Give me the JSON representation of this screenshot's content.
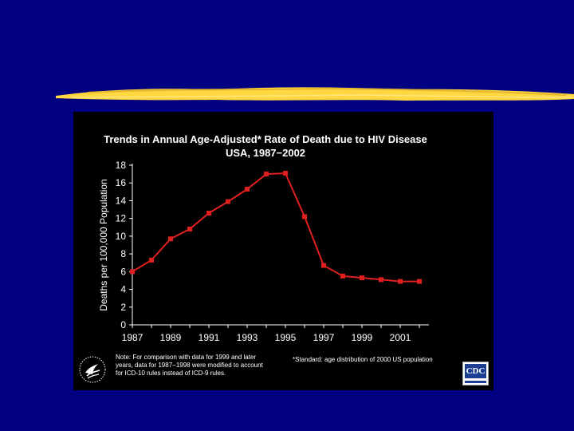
{
  "slide": {
    "background": "#000080",
    "accent_brush": "#ffd740"
  },
  "chart_data": {
    "type": "line",
    "title": "Trends in Annual Age-Adjusted* Rate of Death due to HIV Disease",
    "subtitle": "USA, 1987−2002",
    "xlabel": "",
    "ylabel": "Deaths per 100,000 Population",
    "x": [
      1987,
      1988,
      1989,
      1990,
      1991,
      1992,
      1993,
      1994,
      1995,
      1996,
      1997,
      1998,
      1999,
      2000,
      2001,
      2002
    ],
    "x_tick_labels": [
      "1987",
      "1989",
      "1991",
      "1993",
      "1995",
      "1997",
      "1999",
      "2001"
    ],
    "xlim": [
      1987,
      2002.5
    ],
    "ylim": [
      0,
      18
    ],
    "y_ticks": [
      0,
      2,
      4,
      6,
      8,
      10,
      12,
      14,
      16,
      18
    ],
    "series": [
      {
        "color": "#e02020",
        "values": [
          6.0,
          7.3,
          9.7,
          10.8,
          12.6,
          13.9,
          15.3,
          17.0,
          17.1,
          12.2,
          6.7,
          5.5,
          5.3,
          5.1,
          4.9,
          4.9
        ]
      }
    ],
    "grid": false,
    "legend": "none",
    "background": "#000000",
    "text_color": "#ffffff"
  },
  "notes": {
    "left_lines": [
      "Note: For comparison with data for 1999 and later",
      "years, data for 1987−1998 were modified to account",
      "for ICD-10 rules instead of ICD-9 rules."
    ],
    "right": "*Standard: age distribution of 2000 US population"
  },
  "logos": {
    "cdc_text": "CDC",
    "left_icon": "hhs-eagle-icon",
    "right_icon": "cdc-logo-icon"
  }
}
